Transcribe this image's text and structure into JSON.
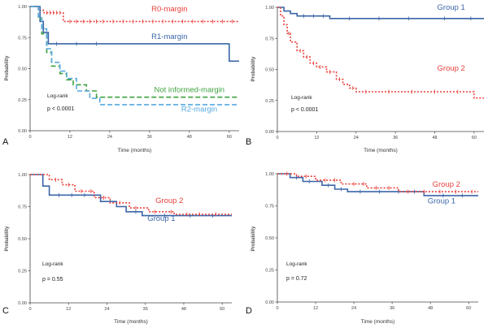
{
  "chart_data": [
    {
      "panel": "A",
      "type": "line",
      "xlabel": "Time (months)",
      "ylabel": "Probability",
      "xlim": [
        0,
        63
      ],
      "ylim": [
        0,
        1.0
      ],
      "x_ticks": [
        0,
        12,
        24,
        36,
        48,
        60
      ],
      "y_ticks": [
        0.0,
        0.25,
        0.5,
        0.75,
        1.0
      ],
      "y_tick_labels": [
        "0.00",
        "0.25",
        "0.50",
        "0.75",
        "1.00"
      ],
      "stats": {
        "test": "Log-rank",
        "p": "p < 0.0001"
      },
      "series": [
        {
          "name": "R0-margin",
          "color": "#e8413c",
          "dash": "2,2",
          "x": [
            0,
            2.5,
            2.5,
            4,
            4,
            10,
            10,
            63
          ],
          "y": [
            1.0,
            1.0,
            0.97,
            0.97,
            0.95,
            0.95,
            0.88,
            0.88
          ],
          "censor_x": [
            5,
            6,
            7,
            8,
            9,
            12,
            14,
            16,
            18,
            20,
            22,
            25,
            28,
            31,
            34,
            37,
            40,
            43,
            46,
            49,
            52,
            55,
            58,
            61
          ],
          "label": {
            "text": "R0-margin",
            "x": 42,
            "y": 0.96
          }
        },
        {
          "name": "R1-margin",
          "color": "#3a66a8",
          "dash": "",
          "x": [
            0,
            3,
            3,
            4,
            4,
            5.5,
            5.5,
            60,
            60,
            63
          ],
          "y": [
            1.0,
            1.0,
            0.88,
            0.88,
            0.79,
            0.79,
            0.7,
            0.7,
            0.56,
            0.56
          ],
          "censor_x": [
            8,
            14,
            20
          ],
          "label": {
            "text": "R1-margin",
            "x": 42,
            "y": 0.74
          }
        },
        {
          "name": "Not informed-margin",
          "color": "#3ea23e",
          "dash": "6,3",
          "x": [
            0,
            2.5,
            2.5,
            3.5,
            3.5,
            5,
            5,
            6.5,
            6.5,
            9,
            9,
            11,
            11,
            13,
            13,
            17,
            17,
            20,
            20,
            63
          ],
          "y": [
            1.0,
            1.0,
            0.9,
            0.9,
            0.78,
            0.78,
            0.63,
            0.63,
            0.52,
            0.52,
            0.46,
            0.46,
            0.41,
            0.41,
            0.37,
            0.37,
            0.32,
            0.32,
            0.27,
            0.27
          ],
          "censor_x": [],
          "label": {
            "text": "Not informed-margin",
            "x": 48,
            "y": 0.31
          }
        },
        {
          "name": "R2-margin",
          "color": "#56a8e0",
          "dash": "6,3",
          "x": [
            0,
            2.5,
            2.5,
            3.5,
            3.5,
            5,
            5,
            6.5,
            6.5,
            9,
            9,
            11,
            11,
            14,
            14,
            18,
            18,
            21,
            21,
            63
          ],
          "y": [
            1.0,
            1.0,
            0.92,
            0.92,
            0.82,
            0.82,
            0.66,
            0.66,
            0.55,
            0.55,
            0.48,
            0.48,
            0.42,
            0.42,
            0.32,
            0.32,
            0.26,
            0.26,
            0.21,
            0.21
          ],
          "censor_x": [],
          "label": {
            "text": "R2-margin",
            "x": 51,
            "y": 0.155
          }
        }
      ]
    },
    {
      "panel": "B",
      "type": "line",
      "xlabel": "Time (months)",
      "ylabel": "Probability",
      "xlim": [
        0,
        63
      ],
      "ylim": [
        0,
        1.0
      ],
      "x_ticks": [
        0,
        12,
        24,
        36,
        48,
        60
      ],
      "y_ticks": [
        0.0,
        0.25,
        0.5,
        0.75,
        1.0
      ],
      "y_tick_labels": [
        "0.00",
        "0.25",
        "0.50",
        "0.75",
        "1.00"
      ],
      "stats": {
        "test": "Log-rank",
        "p": "p < 0.0001"
      },
      "series": [
        {
          "name": "Group 1",
          "color": "#3a66a8",
          "dash": "",
          "x": [
            0,
            2,
            2,
            4,
            4,
            6,
            6,
            16,
            16,
            63
          ],
          "y": [
            1.0,
            1.0,
            0.97,
            0.97,
            0.95,
            0.95,
            0.93,
            0.93,
            0.91,
            0.91
          ],
          "censor_x": [
            8,
            11,
            14,
            22,
            31,
            40,
            51,
            59
          ],
          "label": {
            "text": "Group 1",
            "x": 53,
            "y": 0.98
          }
        },
        {
          "name": "Group 2",
          "color": "#e8413c",
          "dash": "2,2",
          "x": [
            0,
            1,
            1,
            2,
            2,
            3,
            3,
            4,
            4,
            6,
            6,
            8,
            8,
            10,
            10,
            12,
            12,
            15,
            15,
            18,
            18,
            20,
            20,
            22,
            22,
            24,
            24,
            60,
            60,
            63
          ],
          "y": [
            1.0,
            1.0,
            0.93,
            0.93,
            0.86,
            0.86,
            0.79,
            0.79,
            0.72,
            0.72,
            0.65,
            0.65,
            0.6,
            0.6,
            0.55,
            0.55,
            0.52,
            0.52,
            0.48,
            0.48,
            0.42,
            0.42,
            0.38,
            0.38,
            0.35,
            0.35,
            0.32,
            0.32,
            0.27,
            0.27
          ],
          "censor_x": [
            3.5,
            7,
            9,
            11,
            13,
            16,
            19,
            23,
            27,
            34,
            41,
            48,
            55
          ],
          "label": {
            "text": "Group 2",
            "x": 53,
            "y": 0.49
          }
        }
      ]
    },
    {
      "panel": "C",
      "type": "line",
      "xlabel": "Time (months)",
      "ylabel": "Probability",
      "xlim": [
        0,
        63
      ],
      "ylim": [
        0,
        1.0
      ],
      "x_ticks": [
        0,
        12,
        24,
        36,
        48,
        60
      ],
      "y_ticks": [
        0.0,
        0.25,
        0.5,
        0.75,
        1.0
      ],
      "y_tick_labels": [
        "0.00",
        "0.25",
        "0.50",
        "0.75",
        "1.00"
      ],
      "stats": {
        "test": "Log-rank",
        "p": "p = 0.55"
      },
      "series": [
        {
          "name": "Group 1",
          "color": "#3a66a8",
          "dash": "",
          "x": [
            0,
            4,
            4,
            6,
            6,
            22,
            22,
            27,
            27,
            30,
            30,
            35,
            35,
            63
          ],
          "y": [
            1.0,
            1.0,
            0.91,
            0.91,
            0.84,
            0.84,
            0.79,
            0.79,
            0.75,
            0.75,
            0.71,
            0.71,
            0.68,
            0.68
          ],
          "censor_x": [
            9,
            13,
            17,
            25,
            33,
            42,
            50,
            57
          ],
          "label": {
            "text": "Group 1",
            "x": 41,
            "y": 0.64
          }
        },
        {
          "name": "Group 2",
          "color": "#e8413c",
          "dash": "2,2",
          "x": [
            0,
            6,
            6,
            10,
            10,
            14,
            14,
            20,
            20,
            25,
            25,
            31,
            31,
            37,
            37,
            45,
            45,
            63
          ],
          "y": [
            1.0,
            1.0,
            0.96,
            0.96,
            0.92,
            0.92,
            0.87,
            0.87,
            0.82,
            0.82,
            0.78,
            0.78,
            0.74,
            0.74,
            0.71,
            0.71,
            0.69,
            0.69
          ],
          "censor_x": [
            8,
            12,
            16,
            19,
            23,
            28,
            33,
            39,
            44,
            49,
            53,
            58
          ],
          "label": {
            "text": "Group 2",
            "x": 43.5,
            "y": 0.78
          }
        }
      ]
    },
    {
      "panel": "D",
      "type": "line",
      "xlabel": "Time (months)",
      "ylabel": "Probability",
      "xlim": [
        0,
        63
      ],
      "ylim": [
        0,
        1.0
      ],
      "x_ticks": [
        0,
        12,
        24,
        36,
        48,
        60
      ],
      "y_ticks": [
        0.0,
        0.25,
        0.5,
        0.75,
        1.0
      ],
      "y_tick_labels": [
        "0.00",
        "0.25",
        "0.50",
        "0.75",
        "1.00"
      ],
      "stats": {
        "test": "Log-rank",
        "p": "p = 0.72"
      },
      "series": [
        {
          "name": "Group 1",
          "color": "#3a66a8",
          "dash": "",
          "x": [
            0,
            4,
            4,
            8,
            8,
            14,
            14,
            18,
            18,
            22,
            22,
            46,
            46,
            63
          ],
          "y": [
            1.0,
            1.0,
            0.97,
            0.97,
            0.94,
            0.94,
            0.91,
            0.91,
            0.88,
            0.88,
            0.86,
            0.86,
            0.83,
            0.83
          ],
          "censor_x": [
            6,
            10,
            16,
            20,
            26,
            32,
            38,
            43,
            52,
            58
          ],
          "label": {
            "text": "Group 1",
            "x": 51.5,
            "y": 0.77
          }
        },
        {
          "name": "Group 2",
          "color": "#e8413c",
          "dash": "2,2",
          "x": [
            0,
            6,
            6,
            12,
            12,
            20,
            20,
            28,
            28,
            38,
            38,
            63
          ],
          "y": [
            1.0,
            1.0,
            0.98,
            0.98,
            0.95,
            0.95,
            0.92,
            0.92,
            0.89,
            0.89,
            0.86,
            0.86
          ],
          "censor_x": [
            3,
            9,
            15,
            18,
            24,
            27,
            31,
            35,
            41,
            46,
            51,
            56,
            61
          ],
          "label": {
            "text": "Group 2",
            "x": 53,
            "y": 0.9
          }
        }
      ]
    }
  ]
}
